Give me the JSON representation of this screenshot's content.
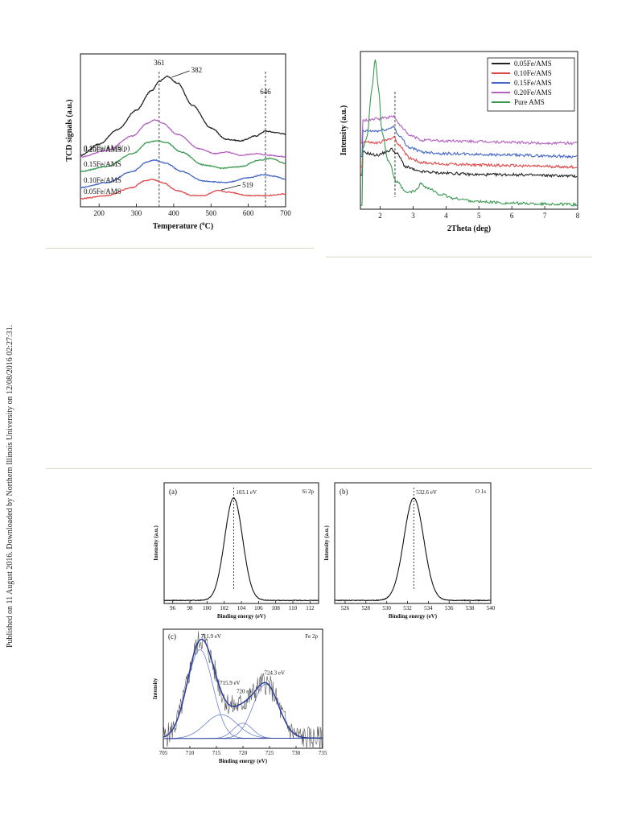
{
  "sidebar_note": "Published on 11 August 2016. Downloaded by Northern Illinois University on 12/08/2016 02:27:31.",
  "chart_data": [
    {
      "id": "tpr",
      "type": "line",
      "xlabel": "Temperature (°C)",
      "xlabel_pre": "Temperature (",
      "xlabel_sup": "o",
      "xlabel_post": "C)",
      "ylabel": "TCD signals (a.u.)",
      "xlim": [
        150,
        700
      ],
      "xticks": [
        200,
        300,
        400,
        500,
        600,
        700
      ],
      "ref_lines": [
        361,
        646
      ],
      "annotations": [
        {
          "text": "361",
          "x": 361
        },
        {
          "text": "382",
          "x": 382
        },
        {
          "text": "646",
          "x": 646
        },
        {
          "text": "519",
          "x": 519
        }
      ],
      "series": [
        {
          "name": "0.15Fe/AMS(p)",
          "color": "#222222",
          "points": [
            [
              150,
              0.27
            ],
            [
              200,
              0.34
            ],
            [
              250,
              0.43
            ],
            [
              300,
              0.55
            ],
            [
              340,
              0.67
            ],
            [
              361,
              0.73
            ],
            [
              382,
              0.76
            ],
            [
              410,
              0.72
            ],
            [
              450,
              0.58
            ],
            [
              500,
              0.44
            ],
            [
              540,
              0.37
            ],
            [
              580,
              0.36
            ],
            [
              620,
              0.39
            ],
            [
              646,
              0.42
            ],
            [
              680,
              0.41
            ],
            [
              700,
              0.4
            ]
          ]
        },
        {
          "name": "0.20Fe/AMS",
          "color": "#b45fc0",
          "points": [
            [
              150,
              0.26
            ],
            [
              220,
              0.3
            ],
            [
              290,
              0.39
            ],
            [
              330,
              0.47
            ],
            [
              350,
              0.49
            ],
            [
              370,
              0.47
            ],
            [
              410,
              0.4
            ],
            [
              470,
              0.31
            ],
            [
              510,
              0.28
            ],
            [
              540,
              0.29
            ],
            [
              580,
              0.27
            ],
            [
              620,
              0.28
            ],
            [
              660,
              0.27
            ],
            [
              700,
              0.26
            ]
          ]
        },
        {
          "name": "0.15Fe/AMS",
          "color": "#3a9a52",
          "points": [
            [
              150,
              0.17
            ],
            [
              220,
              0.2
            ],
            [
              290,
              0.28
            ],
            [
              330,
              0.35
            ],
            [
              355,
              0.36
            ],
            [
              380,
              0.35
            ],
            [
              420,
              0.29
            ],
            [
              480,
              0.21
            ],
            [
              530,
              0.19
            ],
            [
              580,
              0.2
            ],
            [
              630,
              0.24
            ],
            [
              660,
              0.25
            ],
            [
              700,
              0.22
            ]
          ]
        },
        {
          "name": "0.10Fe/AMS",
          "color": "#4466c8",
          "points": [
            [
              150,
              0.07
            ],
            [
              220,
              0.1
            ],
            [
              290,
              0.17
            ],
            [
              330,
              0.23
            ],
            [
              350,
              0.24
            ],
            [
              380,
              0.22
            ],
            [
              420,
              0.17
            ],
            [
              480,
              0.11
            ],
            [
              540,
              0.1
            ],
            [
              600,
              0.13
            ],
            [
              640,
              0.15
            ],
            [
              670,
              0.14
            ],
            [
              700,
              0.12
            ]
          ]
        },
        {
          "name": "0.05Fe/AMS",
          "color": "#e04848",
          "points": [
            [
              150,
              0.0
            ],
            [
              220,
              0.02
            ],
            [
              290,
              0.07
            ],
            [
              320,
              0.11
            ],
            [
              345,
              0.12
            ],
            [
              370,
              0.1
            ],
            [
              410,
              0.05
            ],
            [
              450,
              0.02
            ],
            [
              480,
              0.02
            ],
            [
              519,
              0.05
            ],
            [
              550,
              0.04
            ],
            [
              600,
              0.02
            ],
            [
              650,
              0.02
            ],
            [
              700,
              0.03
            ]
          ]
        }
      ]
    },
    {
      "id": "xrd",
      "type": "line",
      "xlabel": "2Theta (deg)",
      "ylabel": "Intensity (a.u.)",
      "xlim": [
        1.4,
        8
      ],
      "xticks": [
        2,
        3,
        4,
        5,
        6,
        7,
        8
      ],
      "ref_lines": [
        2.45
      ],
      "legend_position": "top-right",
      "series": [
        {
          "name": "0.05Fe/AMS",
          "color": "#222222",
          "points": [
            [
              1.45,
              0.38
            ],
            [
              1.9,
              0.36
            ],
            [
              2.2,
              0.38
            ],
            [
              2.35,
              0.4
            ],
            [
              2.5,
              0.37
            ],
            [
              2.8,
              0.28
            ],
            [
              3.2,
              0.25
            ],
            [
              4,
              0.24
            ],
            [
              5,
              0.23
            ],
            [
              6,
              0.23
            ],
            [
              7,
              0.225
            ],
            [
              8,
              0.22
            ]
          ]
        },
        {
          "name": "0.10Fe/AMS",
          "color": "#e04848",
          "points": [
            [
              1.45,
              0.45
            ],
            [
              1.9,
              0.44
            ],
            [
              2.2,
              0.46
            ],
            [
              2.4,
              0.48
            ],
            [
              2.6,
              0.42
            ],
            [
              2.9,
              0.34
            ],
            [
              3.3,
              0.31
            ],
            [
              4,
              0.3
            ],
            [
              5,
              0.295
            ],
            [
              6,
              0.29
            ],
            [
              7,
              0.285
            ],
            [
              8,
              0.28
            ]
          ]
        },
        {
          "name": "0.15Fe/AMS",
          "color": "#4466c8",
          "points": [
            [
              1.45,
              0.52
            ],
            [
              1.9,
              0.52
            ],
            [
              2.2,
              0.53
            ],
            [
              2.4,
              0.55
            ],
            [
              2.6,
              0.48
            ],
            [
              2.9,
              0.41
            ],
            [
              3.3,
              0.38
            ],
            [
              4,
              0.37
            ],
            [
              5,
              0.365
            ],
            [
              6,
              0.36
            ],
            [
              7,
              0.355
            ],
            [
              8,
              0.35
            ]
          ]
        },
        {
          "name": "0.20Fe/AMS",
          "color": "#b45fc0",
          "points": [
            [
              1.45,
              0.59
            ],
            [
              1.9,
              0.6
            ],
            [
              2.2,
              0.61
            ],
            [
              2.4,
              0.62
            ],
            [
              2.6,
              0.56
            ],
            [
              2.9,
              0.49
            ],
            [
              3.3,
              0.46
            ],
            [
              4,
              0.455
            ],
            [
              5,
              0.45
            ],
            [
              6,
              0.445
            ],
            [
              7,
              0.44
            ],
            [
              8,
              0.44
            ]
          ]
        },
        {
          "name": "Pure AMS",
          "color": "#3a9a52",
          "points": [
            [
              1.45,
              0.4
            ],
            [
              1.6,
              0.48
            ],
            [
              1.75,
              0.8
            ],
            [
              1.85,
              1.0
            ],
            [
              1.95,
              0.8
            ],
            [
              2.05,
              0.52
            ],
            [
              2.25,
              0.32
            ],
            [
              2.5,
              0.18
            ],
            [
              2.8,
              0.11
            ],
            [
              3.05,
              0.12
            ],
            [
              3.25,
              0.17
            ],
            [
              3.45,
              0.14
            ],
            [
              3.8,
              0.1
            ],
            [
              4.3,
              0.07
            ],
            [
              5,
              0.05
            ],
            [
              6,
              0.04
            ],
            [
              7,
              0.035
            ],
            [
              8,
              0.03
            ]
          ]
        }
      ]
    },
    {
      "id": "xps-si",
      "type": "line",
      "panel_label": "(a)",
      "element_label": "Si 2p",
      "peak_label": "103.1 eV",
      "peak": 103.1,
      "width": 1.05,
      "xlabel": "Binding energy (eV)",
      "ylabel": "Intensity (a.u.)",
      "xlim": [
        95,
        113
      ],
      "xticks": [
        96,
        98,
        100,
        102,
        104,
        106,
        108,
        110,
        112
      ]
    },
    {
      "id": "xps-o",
      "type": "line",
      "panel_label": "(b)",
      "element_label": "O 1s",
      "peak_label": "532.6 eV",
      "peak": 532.6,
      "width": 0.95,
      "xlabel": "Binding energy (eV)",
      "ylabel": "Intensity (a.u.)",
      "xlim": [
        525,
        540
      ],
      "xticks": [
        526,
        528,
        530,
        532,
        534,
        536,
        538,
        540
      ]
    },
    {
      "id": "xps-fe",
      "type": "line",
      "panel_label": "(c)",
      "element_label": "Fe 2p",
      "xlabel": "Binding energy (eV)",
      "ylabel": "Intensity",
      "xlim": [
        705,
        735
      ],
      "xticks": [
        705,
        710,
        715,
        720,
        725,
        730,
        735
      ],
      "components": [
        {
          "center": 711.9,
          "height": 0.82,
          "width": 2.4,
          "label": "711.9 eV"
        },
        {
          "center": 715.9,
          "height": 0.22,
          "width": 3.0,
          "label": "715.9 eV"
        },
        {
          "center": 720.0,
          "height": 0.14,
          "width": 1.8,
          "label": "720 eV"
        },
        {
          "center": 724.3,
          "height": 0.5,
          "width": 2.4,
          "label": "724.3 eV"
        }
      ]
    }
  ]
}
